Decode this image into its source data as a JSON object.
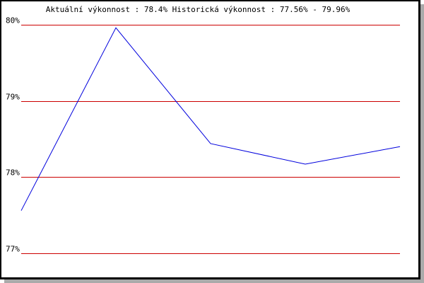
{
  "chart_data": {
    "type": "line",
    "title": "Aktuální výkonnost : 78.4%  Historická výkonnost : 77.56% - 79.96%",
    "xlabel": "",
    "ylabel": "",
    "ylim": [
      77,
      80
    ],
    "yticks": [
      80,
      79,
      78,
      77
    ],
    "ytick_labels": [
      "80%",
      "79%",
      "78%",
      "77%"
    ],
    "grid": true,
    "x": [
      1,
      2,
      3,
      4,
      5
    ],
    "series": [
      {
        "values": [
          77.56,
          79.96,
          78.44,
          78.17,
          78.4
        ]
      }
    ],
    "colors": {
      "line": "#0000dd",
      "grid": "#cc0000"
    }
  }
}
